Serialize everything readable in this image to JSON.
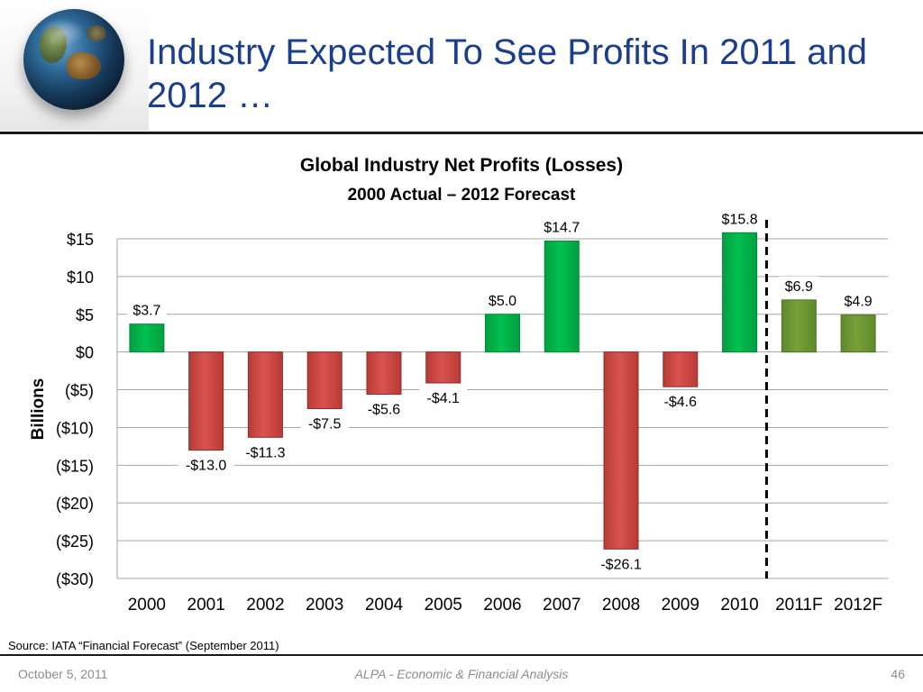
{
  "slide": {
    "title": "Industry Expected To See Profits In 2011 and 2012 …",
    "source": "Source: IATA “Financial Forecast” (September 2011)",
    "footer_date": "October 5, 2011",
    "footer_center": "ALPA - Economic & Financial Analysis",
    "page_number": "46"
  },
  "chart_data": {
    "type": "bar",
    "title": "Global Industry Net Profits (Losses)",
    "subtitle": "2000 Actual – 2012 Forecast",
    "ylabel": "Billions",
    "xlabel": "",
    "ylim": [
      -30,
      15
    ],
    "yticks": [
      15,
      10,
      5,
      0,
      -5,
      -10,
      -15,
      -20,
      -25,
      -30
    ],
    "ytick_labels": [
      "$15",
      "$10",
      "$5",
      "$0",
      "($5)",
      "($10)",
      "($15)",
      "($20)",
      "($25)",
      "($30)"
    ],
    "categories": [
      "2000",
      "2001",
      "2002",
      "2003",
      "2004",
      "2005",
      "2006",
      "2007",
      "2008",
      "2009",
      "2010",
      "2011F",
      "2012F"
    ],
    "values": [
      3.7,
      -13.0,
      -11.3,
      -7.5,
      -5.6,
      -4.1,
      5.0,
      14.7,
      -26.1,
      -4.6,
      15.8,
      6.9,
      4.9
    ],
    "data_labels": [
      "$3.7",
      "-$13.0",
      "-$11.3",
      "-$7.5",
      "-$5.6",
      "-$4.1",
      "$5.0",
      "$14.7",
      "-$26.1",
      "-$4.6",
      "$15.8",
      "$6.9",
      "$4.9"
    ],
    "forecast_from": "2011F",
    "grid": true,
    "colors": {
      "profit": "#00c050",
      "loss": "#d9534f",
      "forecast": "#77a03a"
    }
  }
}
